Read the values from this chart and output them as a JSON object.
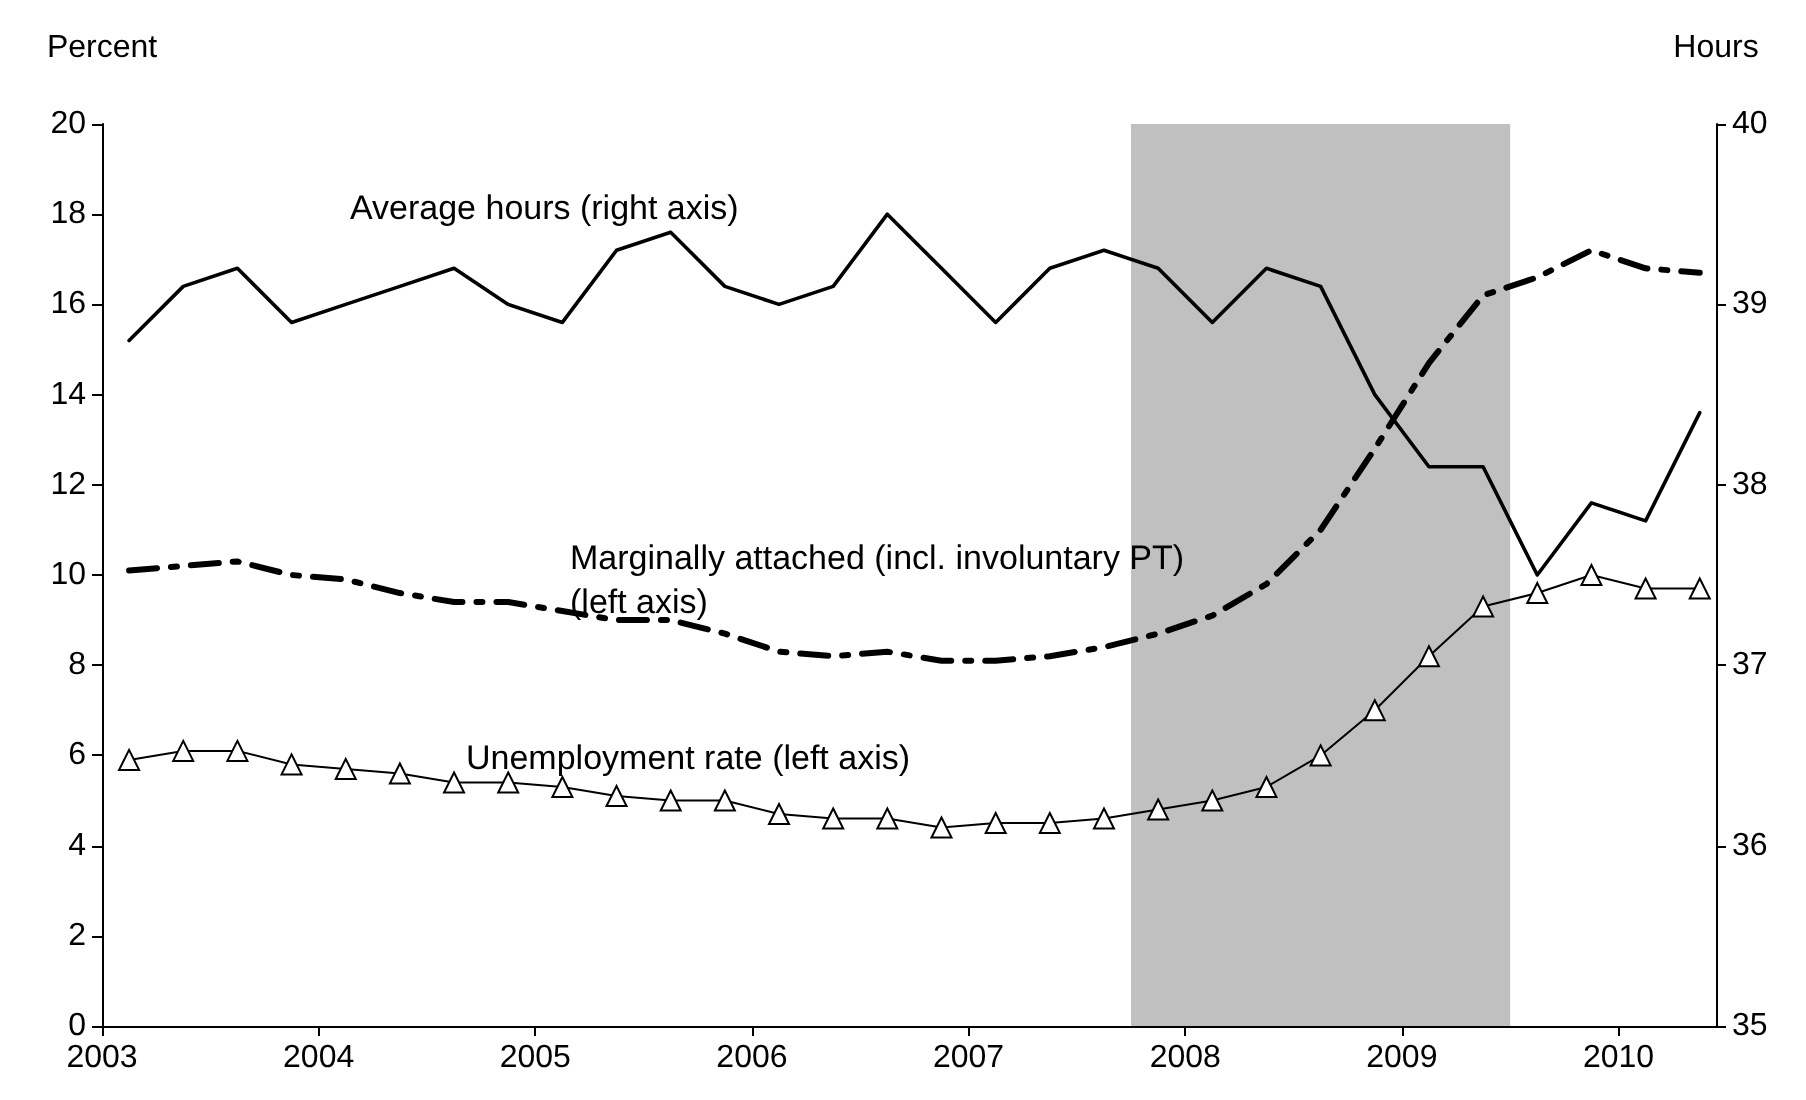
{
  "chart_data": {
    "type": "line",
    "ylabel": "Percent",
    "y2label": "Hours",
    "x": [
      2003.125,
      2003.375,
      2003.625,
      2003.875,
      2004.125,
      2004.375,
      2004.625,
      2004.875,
      2005.125,
      2005.375,
      2005.625,
      2005.875,
      2006.125,
      2006.375,
      2006.625,
      2006.875,
      2007.125,
      2007.375,
      2007.625,
      2007.875,
      2008.125,
      2008.375,
      2008.625,
      2008.875,
      2009.125,
      2009.375,
      2009.625,
      2009.875,
      2010.125,
      2010.375
    ],
    "series": [
      {
        "name": "Average hours (right axis)",
        "color": "#000000",
        "axis": "y2",
        "line_style": "solid",
        "marker": "none",
        "values": [
          38.8,
          39.1,
          39.2,
          38.9,
          39.0,
          39.1,
          39.2,
          39.0,
          38.9,
          39.3,
          39.4,
          39.1,
          39.0,
          39.1,
          39.5,
          39.2,
          38.9,
          39.2,
          39.3,
          39.2,
          38.9,
          39.2,
          39.1,
          38.5,
          38.1,
          38.1,
          37.5,
          37.9,
          37.8,
          38.4
        ]
      },
      {
        "name": "Marginally attached (incl. involuntary PT) (left axis)",
        "color": "#000000",
        "line_style": "dashed",
        "marker": "none",
        "values": [
          10.1,
          10.2,
          10.3,
          10.0,
          9.9,
          9.6,
          9.4,
          9.4,
          9.2,
          9.0,
          9.0,
          8.7,
          8.3,
          8.2,
          8.3,
          8.1,
          8.1,
          8.2,
          8.4,
          8.7,
          9.1,
          9.8,
          11.0,
          12.8,
          14.7,
          16.2,
          16.6,
          17.2,
          16.8,
          16.7
        ]
      },
      {
        "name": "Unemployment rate (left axis)",
        "color": "#000000",
        "line_style": "solid",
        "marker": "triangle",
        "values": [
          5.9,
          6.1,
          6.1,
          5.8,
          5.7,
          5.6,
          5.4,
          5.4,
          5.3,
          5.1,
          5.0,
          5.0,
          4.7,
          4.6,
          4.6,
          4.4,
          4.5,
          4.5,
          4.6,
          4.8,
          5.0,
          5.3,
          6.0,
          7.0,
          8.2,
          9.3,
          9.6,
          10.0,
          9.7,
          9.7
        ]
      }
    ],
    "xlim": [
      2003,
      2010.45
    ],
    "xticks": [
      2003,
      2004,
      2005,
      2006,
      2007,
      2008,
      2009,
      2010
    ],
    "ylim": [
      0,
      20
    ],
    "yticks": [
      0,
      2,
      4,
      6,
      8,
      10,
      12,
      14,
      16,
      18,
      20
    ],
    "y2lim": [
      35,
      40
    ],
    "y2ticks": [
      35,
      36,
      37,
      38,
      39,
      40
    ],
    "bands": [
      {
        "axis": "x",
        "from": 2007.75,
        "to": 2009.5,
        "color": "#c0c0c0"
      }
    ],
    "grid": false,
    "legend": false
  }
}
